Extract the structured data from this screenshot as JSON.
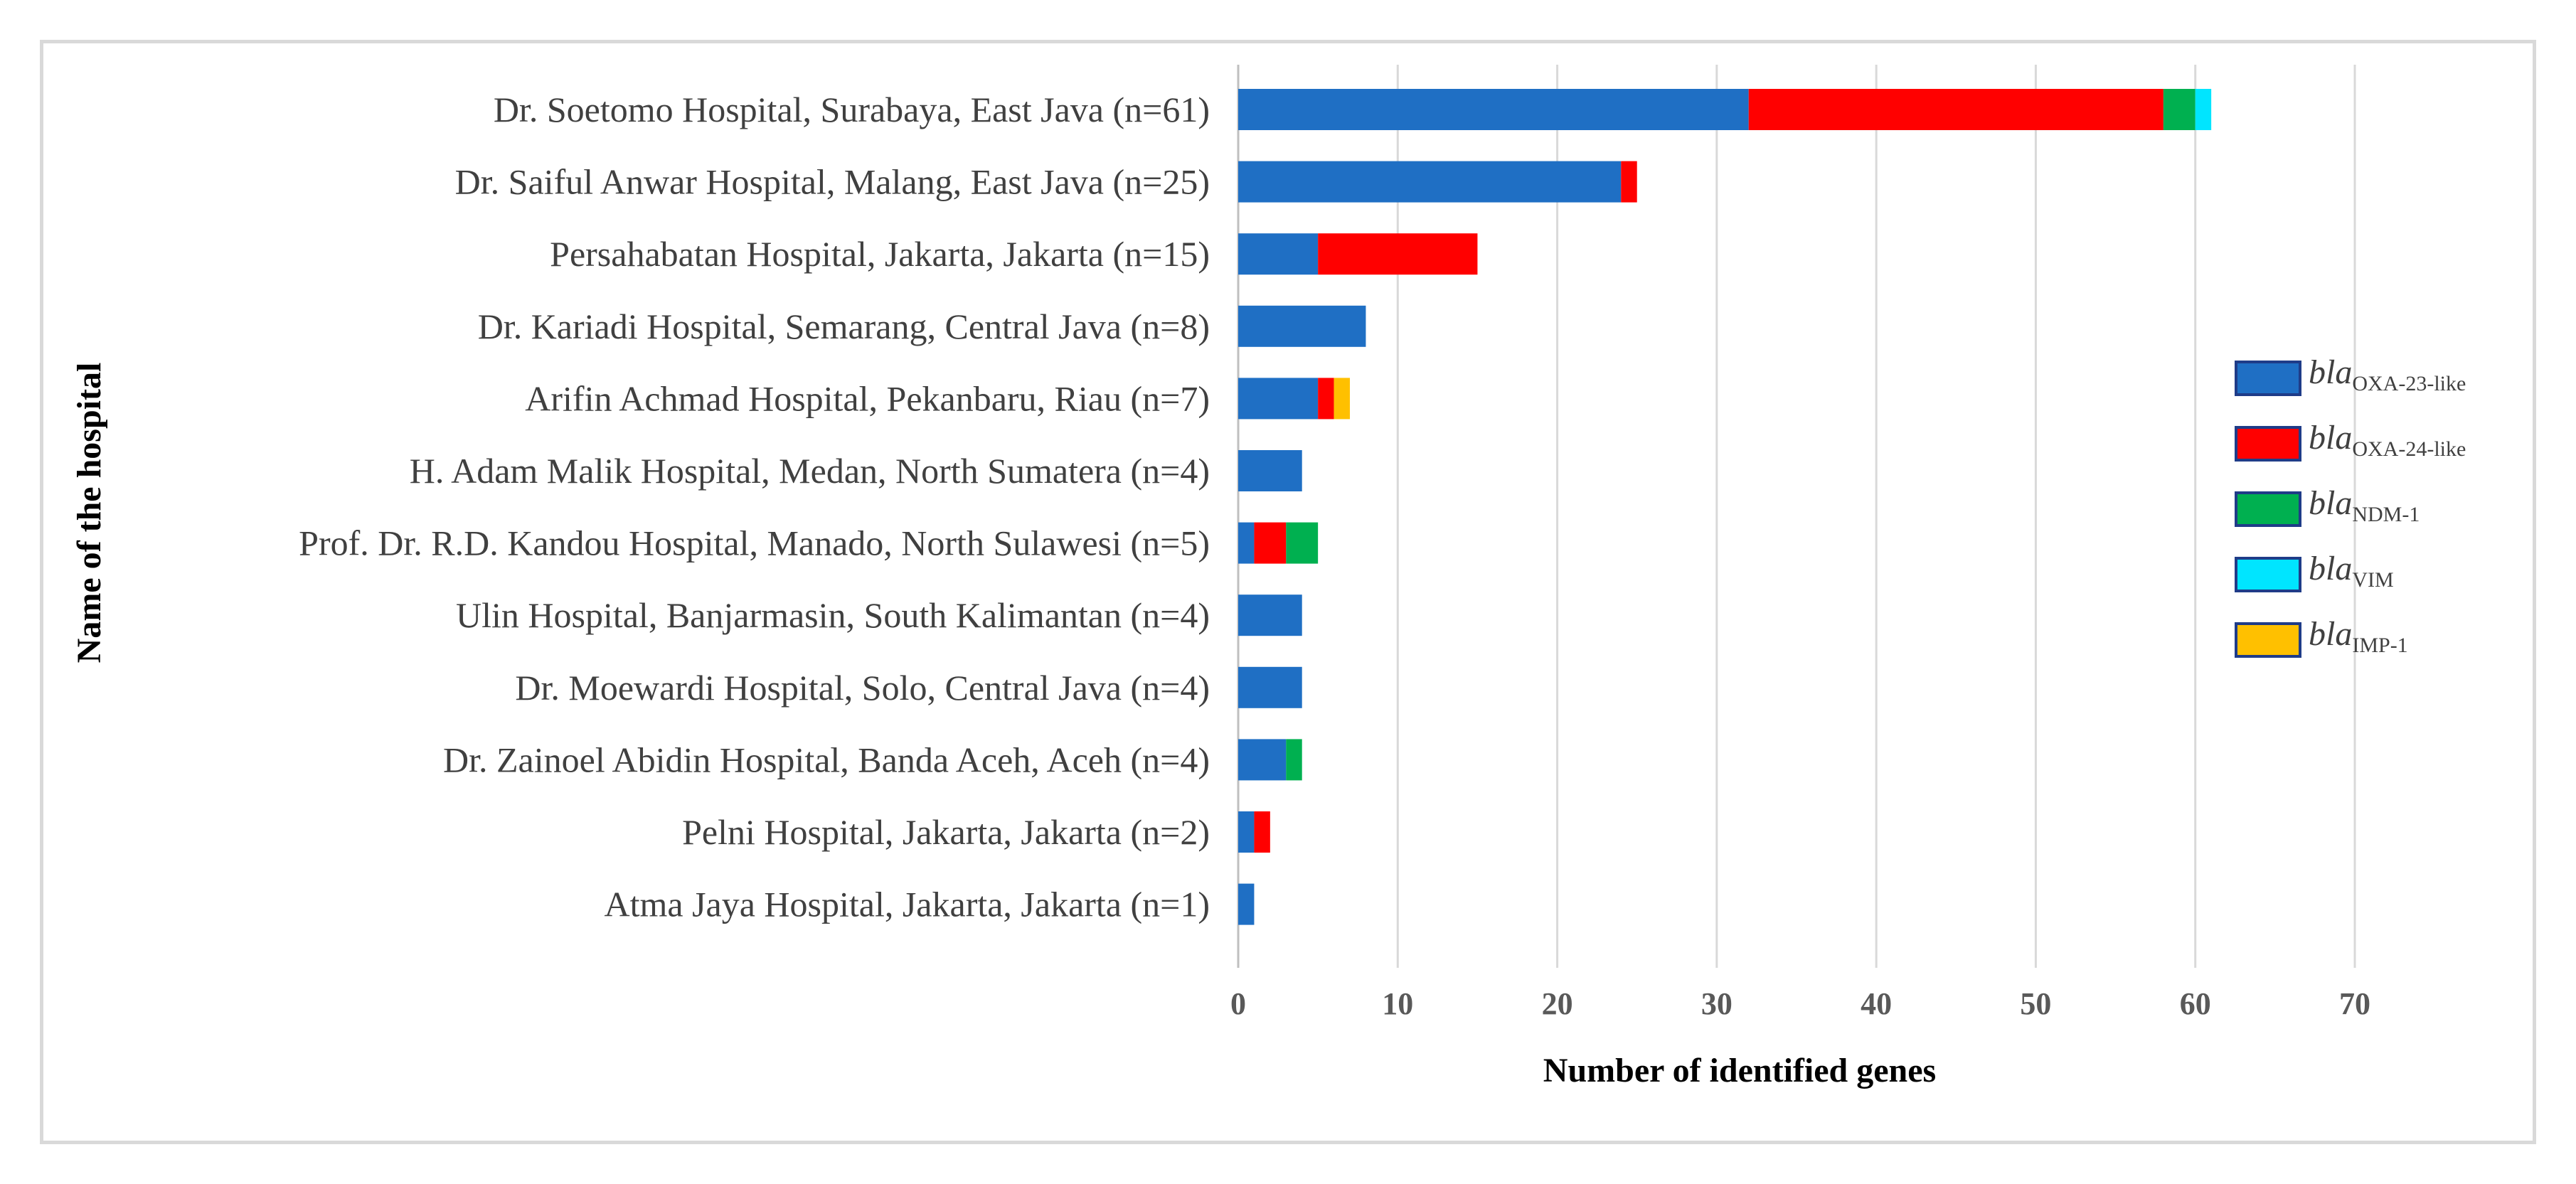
{
  "chart_data": {
    "type": "bar",
    "orientation": "horizontal",
    "stacked": true,
    "xlabel": "Number of identified genes",
    "ylabel": "Name of the hospital",
    "xlim": [
      0,
      70
    ],
    "xticks": [
      0,
      10,
      20,
      30,
      40,
      50,
      60,
      70
    ],
    "grid": true,
    "legend_position": "right",
    "categories": [
      "Dr. Soetomo Hospital, Surabaya, East Java (n=61)",
      "Dr. Saiful Anwar Hospital, Malang, East Java (n=25)",
      "Persahabatan Hospital, Jakarta, Jakarta (n=15)",
      "Dr. Kariadi Hospital, Semarang, Central Java (n=8)",
      "Arifin Achmad Hospital, Pekanbaru, Riau (n=7)",
      "H. Adam Malik Hospital, Medan, North Sumatera (n=4)",
      "Prof. Dr. R.D. Kandou Hospital, Manado, North Sulawesi (n=5)",
      "Ulin Hospital, Banjarmasin, South Kalimantan (n=4)",
      "Dr. Moewardi Hospital, Solo, Central Java (n=4)",
      "Dr. Zainoel Abidin Hospital, Banda Aceh, Aceh (n=4)",
      "Pelni Hospital, Jakarta, Jakarta (n=2)",
      "Atma Jaya Hospital, Jakarta, Jakarta (n=1)"
    ],
    "series": [
      {
        "name": "blaOXA-23-like",
        "prefix": "bla",
        "subscript": "OXA-23-like",
        "color": "#1f6fc4",
        "values": [
          32,
          24,
          5,
          8,
          5,
          4,
          1,
          4,
          4,
          3,
          1,
          1
        ]
      },
      {
        "name": "blaOXA-24-like",
        "prefix": "bla",
        "subscript": "OXA-24-like",
        "color": "#ff0000",
        "values": [
          26,
          1,
          10,
          0,
          1,
          0,
          2,
          0,
          0,
          0,
          1,
          0
        ]
      },
      {
        "name": "blaNDM-1",
        "prefix": "bla",
        "subscript": "NDM-1",
        "color": "#00b050",
        "values": [
          2,
          0,
          0,
          0,
          0,
          0,
          2,
          0,
          0,
          1,
          0,
          0
        ]
      },
      {
        "name": "blaVIM",
        "prefix": "bla",
        "subscript": "VIM",
        "color": "#00e5ff",
        "values": [
          1,
          0,
          0,
          0,
          0,
          0,
          0,
          0,
          0,
          0,
          0,
          0
        ]
      },
      {
        "name": "blaIMP-1",
        "prefix": "bla",
        "subscript": "IMP-1",
        "color": "#ffc000",
        "values": [
          0,
          0,
          0,
          0,
          1,
          0,
          0,
          0,
          0,
          0,
          0,
          0
        ]
      }
    ]
  }
}
